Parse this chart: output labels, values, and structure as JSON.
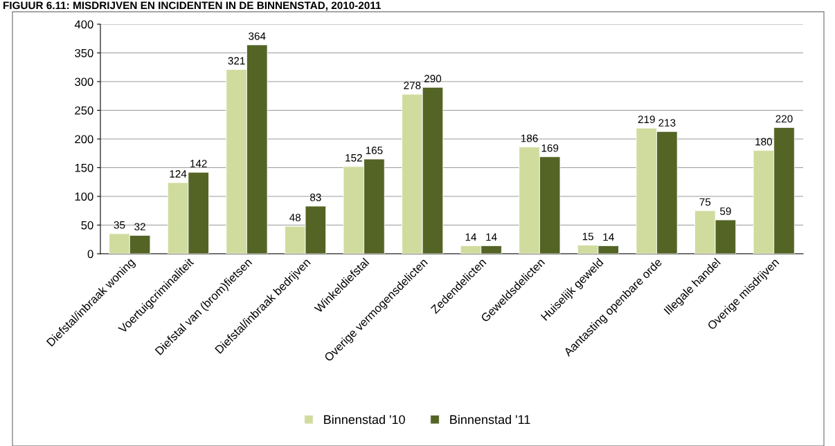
{
  "chart_data": {
    "type": "bar",
    "title": "FIGUUR 6.11: MISDRIJVEN EN INCIDENTEN IN DE BINNENSTAD, 2010-2011",
    "categories": [
      "Diefstal/inbraak woning",
      "Voertuigcriminaliteit",
      "Diefstal van (brom)fietsen",
      "Diefstal/inbraak bedrijven",
      "Winkeldiefstal",
      "Overige vermogensdelicten",
      "Zedendelicten",
      "Geweldsdelicten",
      "Huiselijk geweld",
      "Aantasting openbare orde",
      "Illegale handel",
      "Overige misdrijven"
    ],
    "series": [
      {
        "name": "Binnenstad '10",
        "color": "#d0dc9e",
        "values": [
          35,
          124,
          321,
          48,
          152,
          278,
          14,
          186,
          15,
          219,
          75,
          180
        ]
      },
      {
        "name": "Binnenstad '11",
        "color": "#536425",
        "values": [
          32,
          142,
          364,
          83,
          165,
          290,
          14,
          169,
          14,
          213,
          59,
          220
        ]
      }
    ],
    "ylim": [
      0,
      400
    ],
    "yticks": [
      0,
      50,
      100,
      150,
      200,
      250,
      300,
      350,
      400
    ],
    "grid": "y",
    "legend": "bottom",
    "data_labels": true
  }
}
